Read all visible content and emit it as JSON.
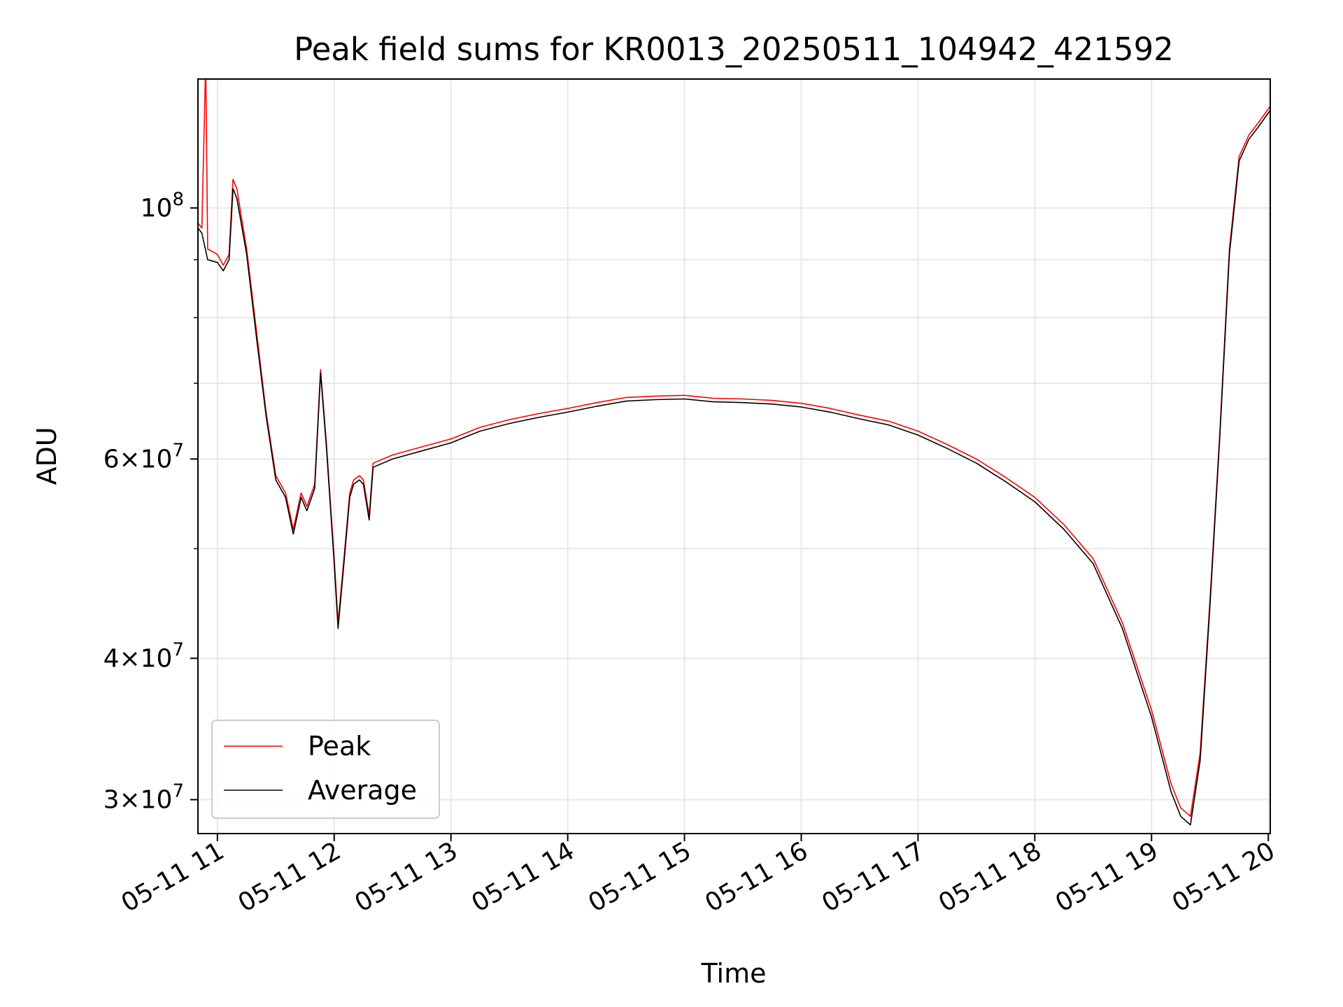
{
  "chart_data": {
    "type": "line",
    "title": "Peak field sums for KR0013_20250511_104942_421592",
    "xlabel": "Time",
    "ylabel": "ADU",
    "x_range": [
      "05-11 10:50",
      "05-11 20:01"
    ],
    "x_ticks": [
      "05-11 11",
      "05-11 12",
      "05-11 13",
      "05-11 14",
      "05-11 15",
      "05-11 16",
      "05-11 17",
      "05-11 18",
      "05-11 19",
      "05-11 20"
    ],
    "y_scale": "log",
    "ylim": [
      28000000,
      130000000
    ],
    "y_ticks": [
      {
        "value": 30000000,
        "mantissa": "3",
        "exp": "7"
      },
      {
        "value": 40000000,
        "mantissa": "4",
        "exp": "7"
      },
      {
        "value": 60000000,
        "mantissa": "6",
        "exp": "7"
      },
      {
        "value": 100000000,
        "mantissa": "",
        "exp": "8"
      }
    ],
    "grid": true,
    "legend_position": "lower-left",
    "series": [
      {
        "name": "Peak",
        "color": "#ff0000",
        "points": [
          [
            "05-11 10:50",
            97000000
          ],
          [
            "05-11 10:52",
            96000000
          ],
          [
            "05-11 10:54",
            135000000
          ],
          [
            "05-11 10:55",
            92000000
          ],
          [
            "05-11 11:00",
            91000000
          ],
          [
            "05-11 11:03",
            89000000
          ],
          [
            "05-11 11:06",
            91000000
          ],
          [
            "05-11 11:08",
            106000000
          ],
          [
            "05-11 11:10",
            104000000
          ],
          [
            "05-11 11:15",
            92000000
          ],
          [
            "05-11 11:20",
            78000000
          ],
          [
            "05-11 11:25",
            66000000
          ],
          [
            "05-11 11:30",
            58000000
          ],
          [
            "05-11 11:35",
            56000000
          ],
          [
            "05-11 11:39",
            52000000
          ],
          [
            "05-11 11:43",
            56000000
          ],
          [
            "05-11 11:46",
            54500000
          ],
          [
            "05-11 11:50",
            57000000
          ],
          [
            "05-11 11:53",
            72000000
          ],
          [
            "05-11 11:56",
            62000000
          ],
          [
            "05-11 12:00",
            49000000
          ],
          [
            "05-11 12:02",
            43000000
          ],
          [
            "05-11 12:05",
            49000000
          ],
          [
            "05-11 12:08",
            56000000
          ],
          [
            "05-11 12:10",
            57500000
          ],
          [
            "05-11 12:13",
            58000000
          ],
          [
            "05-11 12:15",
            57500000
          ],
          [
            "05-11 12:18",
            53500000
          ],
          [
            "05-11 12:20",
            59500000
          ],
          [
            "05-11 12:30",
            60500000
          ],
          [
            "05-11 12:45",
            61500000
          ],
          [
            "05-11 13:00",
            62500000
          ],
          [
            "05-11 13:15",
            64000000
          ],
          [
            "05-11 13:30",
            65000000
          ],
          [
            "05-11 13:45",
            65800000
          ],
          [
            "05-11 14:00",
            66500000
          ],
          [
            "05-11 14:15",
            67300000
          ],
          [
            "05-11 14:30",
            68000000
          ],
          [
            "05-11 14:45",
            68200000
          ],
          [
            "05-11 15:00",
            68300000
          ],
          [
            "05-11 15:15",
            67900000
          ],
          [
            "05-11 15:30",
            67800000
          ],
          [
            "05-11 15:45",
            67600000
          ],
          [
            "05-11 16:00",
            67200000
          ],
          [
            "05-11 16:15",
            66500000
          ],
          [
            "05-11 16:30",
            65600000
          ],
          [
            "05-11 16:45",
            64800000
          ],
          [
            "05-11 17:00",
            63500000
          ],
          [
            "05-11 17:15",
            61800000
          ],
          [
            "05-11 17:30",
            60000000
          ],
          [
            "05-11 17:45",
            57800000
          ],
          [
            "05-11 18:00",
            55500000
          ],
          [
            "05-11 18:15",
            52500000
          ],
          [
            "05-11 18:30",
            49000000
          ],
          [
            "05-11 18:45",
            43000000
          ],
          [
            "05-11 19:00",
            36000000
          ],
          [
            "05-11 19:10",
            31000000
          ],
          [
            "05-11 19:15",
            29500000
          ],
          [
            "05-11 19:20",
            29000000
          ],
          [
            "05-11 19:25",
            33000000
          ],
          [
            "05-11 19:30",
            45000000
          ],
          [
            "05-11 19:35",
            63000000
          ],
          [
            "05-11 19:40",
            92000000
          ],
          [
            "05-11 19:45",
            111000000
          ],
          [
            "05-11 19:50",
            116000000
          ],
          [
            "05-11 19:55",
            119000000
          ],
          [
            "05-11 20:01",
            123000000
          ]
        ]
      },
      {
        "name": "Average",
        "color": "#000000",
        "points": [
          [
            "05-11 10:50",
            96000000
          ],
          [
            "05-11 10:52",
            95000000
          ],
          [
            "05-11 10:55",
            90000000
          ],
          [
            "05-11 11:00",
            89500000
          ],
          [
            "05-11 11:03",
            88000000
          ],
          [
            "05-11 11:06",
            90000000
          ],
          [
            "05-11 11:08",
            104000000
          ],
          [
            "05-11 11:10",
            102000000
          ],
          [
            "05-11 11:15",
            91000000
          ],
          [
            "05-11 11:20",
            77000000
          ],
          [
            "05-11 11:25",
            65500000
          ],
          [
            "05-11 11:30",
            57500000
          ],
          [
            "05-11 11:35",
            55500000
          ],
          [
            "05-11 11:39",
            51500000
          ],
          [
            "05-11 11:43",
            55500000
          ],
          [
            "05-11 11:46",
            54000000
          ],
          [
            "05-11 11:50",
            56500000
          ],
          [
            "05-11 11:53",
            71500000
          ],
          [
            "05-11 11:56",
            61500000
          ],
          [
            "05-11 12:00",
            48500000
          ],
          [
            "05-11 12:02",
            42500000
          ],
          [
            "05-11 12:05",
            48500000
          ],
          [
            "05-11 12:08",
            55500000
          ],
          [
            "05-11 12:10",
            57000000
          ],
          [
            "05-11 12:13",
            57500000
          ],
          [
            "05-11 12:15",
            57000000
          ],
          [
            "05-11 12:18",
            53000000
          ],
          [
            "05-11 12:20",
            59000000
          ],
          [
            "05-11 12:30",
            60000000
          ],
          [
            "05-11 12:45",
            61000000
          ],
          [
            "05-11 13:00",
            62000000
          ],
          [
            "05-11 13:15",
            63500000
          ],
          [
            "05-11 13:30",
            64500000
          ],
          [
            "05-11 13:45",
            65300000
          ],
          [
            "05-11 14:00",
            66000000
          ],
          [
            "05-11 14:15",
            66800000
          ],
          [
            "05-11 14:30",
            67500000
          ],
          [
            "05-11 14:45",
            67700000
          ],
          [
            "05-11 15:00",
            67800000
          ],
          [
            "05-11 15:15",
            67400000
          ],
          [
            "05-11 15:30",
            67300000
          ],
          [
            "05-11 15:45",
            67100000
          ],
          [
            "05-11 16:00",
            66700000
          ],
          [
            "05-11 16:15",
            66000000
          ],
          [
            "05-11 16:30",
            65100000
          ],
          [
            "05-11 16:45",
            64300000
          ],
          [
            "05-11 17:00",
            63000000
          ],
          [
            "05-11 17:15",
            61300000
          ],
          [
            "05-11 17:30",
            59500000
          ],
          [
            "05-11 17:45",
            57300000
          ],
          [
            "05-11 18:00",
            55000000
          ],
          [
            "05-11 18:15",
            52000000
          ],
          [
            "05-11 18:30",
            48500000
          ],
          [
            "05-11 18:45",
            42500000
          ],
          [
            "05-11 19:00",
            35500000
          ],
          [
            "05-11 19:10",
            30500000
          ],
          [
            "05-11 19:15",
            29000000
          ],
          [
            "05-11 19:20",
            28500000
          ],
          [
            "05-11 19:25",
            32500000
          ],
          [
            "05-11 19:30",
            44500000
          ],
          [
            "05-11 19:35",
            62500000
          ],
          [
            "05-11 19:40",
            91000000
          ],
          [
            "05-11 19:45",
            110000000
          ],
          [
            "05-11 19:50",
            115000000
          ],
          [
            "05-11 19:55",
            118000000
          ],
          [
            "05-11 20:01",
            122000000
          ]
        ]
      }
    ]
  }
}
